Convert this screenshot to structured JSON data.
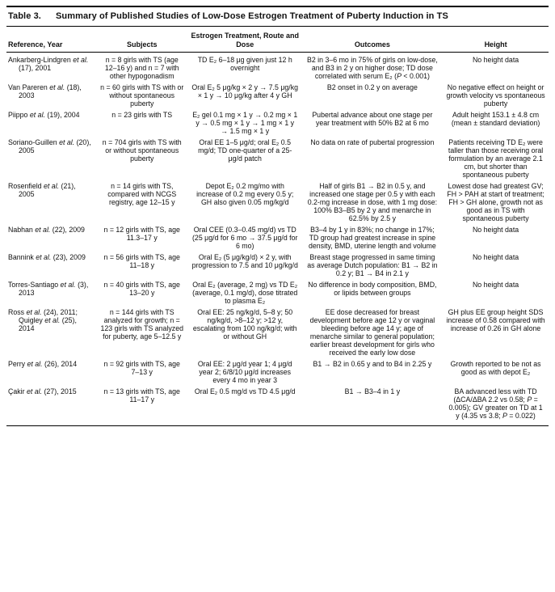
{
  "table": {
    "label": "Table 3.",
    "title": "Summary of Published Studies of Low-Dose Estrogen Treatment of Puberty Induction in TS",
    "columns": [
      "Reference, Year",
      "Subjects",
      "Estrogen Treatment, Route and Dose",
      "Outcomes",
      "Height"
    ],
    "rows": [
      {
        "reference": "Ankarberg-Lindgren *et al.* (17), 2001",
        "subjects": "n = 8 girls with TS (age 12–16 y) and n = 7 with other hypogonadism",
        "treatment": "TD E₂ 6–18 μg given just 12 h overnight",
        "outcomes": "B2 in 3–6 mo in 75% of girls on low-dose, and B3 in 2 y on higher dose; TD dose correlated with serum E₂ (*P* < 0.001)",
        "height": "No height data"
      },
      {
        "reference": "Van Pareren *et al.* (18), 2003",
        "subjects": "n = 60 girls with TS with or without spontaneous puberty",
        "treatment": "Oral E₂ 5 μg/kg × 2 y → 7.5 μg/kg × 1 y → 10 μg/kg after 4 y GH",
        "outcomes": "B2 onset in 0.2 y on average",
        "height": "No negative effect on height or growth velocity vs spontaneous puberty"
      },
      {
        "reference": "Piippo *et al.* (19), 2004",
        "subjects": "n = 23 girls with TS",
        "treatment": "E₂ gel 0.1 mg × 1 y → 0.2 mg × 1 y → 0.5 mg × 1 y → 1 mg × 1 y → 1.5 mg × 1 y",
        "outcomes": "Pubertal advance about one stage per year treatment with 50% B2 at 6 mo",
        "height": "Adult height 153.1 ± 4.8 cm (mean ± standard deviation)"
      },
      {
        "reference": "Soriano-Guillen *et al.* (20), 2005",
        "subjects": "n = 704 girls with TS with or without spontaneous puberty",
        "treatment": "Oral EE 1–5 μg/d; oral E₂ 0.5 mg/d; TD one-quarter of a 25-μg/d patch",
        "outcomes": "No data on rate of pubertal progression",
        "height": "Patients receiving TD E₂ were taller than those receiving oral formulation by an average 2.1 cm, but shorter than spontaneous puberty"
      },
      {
        "reference": "Rosenfield *et al.* (21), 2005",
        "subjects": "n = 14 girls with TS, compared with NCGS registry, age 12–15 y",
        "treatment": "Depot E₂ 0.2 mg/mo with increase of 0.2 mg every 0.5 y; GH also given 0.05 mg/kg/d",
        "outcomes": "Half of girls B1 → B2 in 0.5 y, and increased one stage per 0.5 y with each 0.2-mg increase in dose, with 1 mg dose: 100% B3–B5 by 2 y and menarche in 62.5% by 2.5 y",
        "height": "Lowest dose had greatest GV; FH > PAH at start of treatment; FH > GH alone, growth not as good as in TS with spontaneous puberty"
      },
      {
        "reference": "Nabhan *et al.* (22), 2009",
        "subjects": "n = 12 girls with TS, age 11.3–17 y",
        "treatment": "Oral CEE (0.3–0.45 mg/d) vs TD (25 μg/d for 6 mo → 37.5 μg/d for 6 mo)",
        "outcomes": "B3–4 by 1 y in 83%; no change in 17%; TD group had greatest increase in spine density, BMD, uterine length and volume",
        "height": "No height data"
      },
      {
        "reference": "Bannink *et al.* (23), 2009",
        "subjects": "n = 56 girls with TS, age 11–18 y",
        "treatment": "Oral E₂ (5 μg/kg/d) × 2 y, with progression to 7.5 and 10 μg/kg/d",
        "outcomes": "Breast stage progressed in same timing as average Dutch population: B1 → B2 in 0.2 y; B1 → B4 in 2.1 y",
        "height": "No height data"
      },
      {
        "reference": "Torres-Santiago *et al.* (3), 2013",
        "subjects": "n = 40 girls with TS, age 13–20 y",
        "treatment": "Oral E₂ (average, 2 mg) vs TD E₂ (average, 0.1 mg/d), dose titrated to plasma E₂",
        "outcomes": "No difference in body composition, BMD, or lipids between groups",
        "height": "No height data"
      },
      {
        "reference": "Ross *et al.* (24), 2011; Quigley *et al.* (25), 2014",
        "subjects": "n = 144 girls with TS analyzed for growth; n = 123 girls with TS analyzed for puberty, age 5–12.5 y",
        "treatment": "Oral EE: 25 ng/kg/d, 5–8 y; 50 ng/kg/d, >8–12 y; >12 y, escalating from 100 ng/kg/d; with or without GH",
        "outcomes": "EE dose decreased for breast development before age 12 y or vaginal bleeding before age 14 y; age of menarche similar to general population; earlier breast development for girls who received the early low dose",
        "height": "GH plus EE group height SDS increase of 0.58 compared with increase of 0.26 in GH alone"
      },
      {
        "reference": "Perry *et al.* (26), 2014",
        "subjects": "n = 92 girls with TS, age 7–13 y",
        "treatment": "Oral EE: 2 μg/d year 1; 4 μg/d year 2; 6/8/10 μg/d increases every 4 mo in year 3",
        "outcomes": "B1 → B2 in 0.65 y and to B4 in 2.25 y",
        "height": "Growth reported to be not as good as with depot E₂"
      },
      {
        "reference": "Çakir *et al.* (27), 2015",
        "subjects": "n = 13 girls with TS, age 11–17 y",
        "treatment": "Oral E₂ 0.5 mg/d vs TD 4.5 μg/d",
        "outcomes": "B1 → B3–4 in 1 y",
        "height": "BA advanced less with TD (ΔCA/ΔBA 2.2 vs 0.58; *P* = 0.005); GV greater on TD at 1 y (4.35 vs 3.8; *P* = 0.022)"
      }
    ]
  }
}
